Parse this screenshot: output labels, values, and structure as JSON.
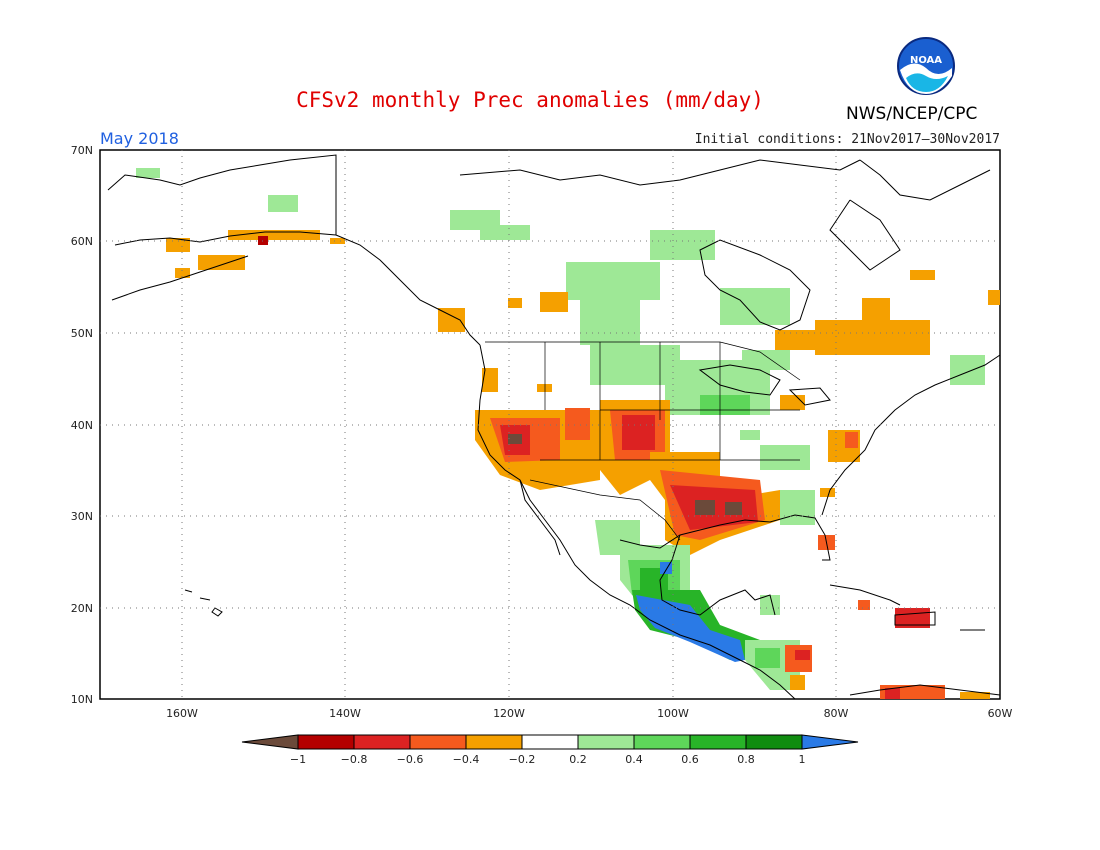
{
  "header": {
    "title": "CFSv2 monthly Prec anomalies (mm/day)",
    "target_month": "May 2018",
    "initial_conditions": "Initial conditions: 21Nov2017–30Nov2017",
    "organization": "NWS/NCEP/CPC",
    "logo_text": "NOAA"
  },
  "map": {
    "lat_labels": [
      "70N",
      "60N",
      "50N",
      "40N",
      "30N",
      "20N",
      "10N"
    ],
    "lon_labels": [
      "160W",
      "140W",
      "120W",
      "100W",
      "80W",
      "60W"
    ],
    "lat_range": [
      10,
      70
    ],
    "lon_range": [
      -170,
      -60
    ],
    "grid_lines": "dotted"
  },
  "legend": {
    "labels": [
      "−1",
      "−0.8",
      "−0.6",
      "−0.4",
      "−0.2",
      "0.2",
      "0.4",
      "0.6",
      "0.8",
      "1"
    ],
    "colors": {
      "below_-1": "#6b4a3a",
      "-1_-0.8": "#b40000",
      "-0.8_-0.6": "#dc2222",
      "-0.6_-0.4": "#f55a1e",
      "-0.4_-0.2": "#f5a000",
      "-0.2_0.2": "#ffffff",
      "0.2_0.4": "#9ee896",
      "0.4_0.6": "#5ed65a",
      "0.6_0.8": "#28b428",
      "0.8_1": "#108c10",
      "above_1": "#2a7ae6"
    }
  }
}
